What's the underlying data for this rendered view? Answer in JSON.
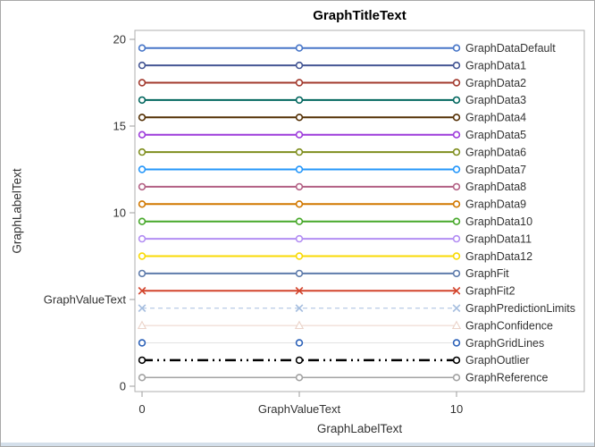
{
  "title": "GraphTitleText",
  "palette": {
    "wall_border": "#AFAFAF",
    "tick": "#9D9D9D",
    "axis_text": "#333333",
    "label_text": "#333333",
    "marker_fill": "#FFFFFF",
    "window_edge": "#D4DFEA"
  },
  "chart_data": {
    "type": "line",
    "title": "GraphTitleText",
    "xlabel": "GraphLabelText",
    "ylabel": "GraphLabelText",
    "xlim": [
      0,
      10
    ],
    "ylim": [
      0,
      20
    ],
    "grid": false,
    "legend_position": "right-inline-labels",
    "x_points": [
      0,
      5,
      10
    ],
    "x_ticks": [
      {
        "value": 0,
        "label": "0"
      },
      {
        "value": 5,
        "label": "GraphValueText"
      },
      {
        "value": 10,
        "label": "10"
      }
    ],
    "y_ticks": [
      {
        "value": 20,
        "label": "20"
      },
      {
        "value": 15,
        "label": "15"
      },
      {
        "value": 10,
        "label": "10"
      },
      {
        "value": 5,
        "label": "GraphValueText"
      },
      {
        "value": 0,
        "label": "0"
      }
    ],
    "series": [
      {
        "name": "GraphDataDefault",
        "y": 19.5,
        "color": "#4876C8",
        "line_style": "solid",
        "line_width": 2,
        "marker": "circle"
      },
      {
        "name": "GraphData1",
        "y": 18.5,
        "color": "#445694",
        "line_style": "solid",
        "line_width": 2,
        "marker": "circle"
      },
      {
        "name": "GraphData2",
        "y": 17.5,
        "color": "#A23A2E",
        "line_style": "solid",
        "line_width": 2,
        "marker": "circle"
      },
      {
        "name": "GraphData3",
        "y": 16.5,
        "color": "#01665E",
        "line_style": "solid",
        "line_width": 2,
        "marker": "circle"
      },
      {
        "name": "GraphData4",
        "y": 15.5,
        "color": "#543005",
        "line_style": "solid",
        "line_width": 2,
        "marker": "circle"
      },
      {
        "name": "GraphData5",
        "y": 14.5,
        "color": "#9D3CDB",
        "line_style": "solid",
        "line_width": 2,
        "marker": "circle"
      },
      {
        "name": "GraphData6",
        "y": 13.5,
        "color": "#7F8E1F",
        "line_style": "solid",
        "line_width": 2,
        "marker": "circle"
      },
      {
        "name": "GraphData7",
        "y": 12.5,
        "color": "#2597FA",
        "line_style": "solid",
        "line_width": 2,
        "marker": "circle"
      },
      {
        "name": "GraphData8",
        "y": 11.5,
        "color": "#B26084",
        "line_style": "solid",
        "line_width": 2,
        "marker": "circle"
      },
      {
        "name": "GraphData9",
        "y": 10.5,
        "color": "#D17800",
        "line_style": "solid",
        "line_width": 2,
        "marker": "circle"
      },
      {
        "name": "GraphData10",
        "y": 9.5,
        "color": "#47A82A",
        "line_style": "solid",
        "line_width": 2,
        "marker": "circle"
      },
      {
        "name": "GraphData11",
        "y": 8.5,
        "color": "#B38EF3",
        "line_style": "solid",
        "line_width": 2,
        "marker": "circle"
      },
      {
        "name": "GraphData12",
        "y": 7.5,
        "color": "#F9DA04",
        "line_style": "solid",
        "line_width": 2,
        "marker": "circle"
      },
      {
        "name": "GraphFit",
        "y": 6.5,
        "color": "#5E7BAB",
        "line_style": "solid",
        "line_width": 2,
        "marker": "circle"
      },
      {
        "name": "GraphFit2",
        "y": 5.5,
        "color": "#D2442C",
        "line_style": "solid",
        "line_width": 2,
        "marker": "x"
      },
      {
        "name": "GraphPredictionLimits",
        "y": 4.5,
        "color": "#A5BDDF",
        "line_style": "dash",
        "line_width": 1,
        "marker": "x"
      },
      {
        "name": "GraphConfidence",
        "y": 3.5,
        "color": "#EBD3C9",
        "line_style": "solid",
        "line_width": 1,
        "marker": "triangle"
      },
      {
        "name": "GraphGridLines",
        "y": 2.5,
        "color": "#2D62B8",
        "line_color": "#E2E2E2",
        "line_style": "solid",
        "line_width": 1,
        "marker": "circle"
      },
      {
        "name": "GraphOutlier",
        "y": 1.5,
        "color": "#000000",
        "line_style": "dashdotdot",
        "line_width": 2.5,
        "marker": "circle"
      },
      {
        "name": "GraphReference",
        "y": 0.5,
        "color": "#A3A3A3",
        "line_style": "solid",
        "line_width": 1.5,
        "marker": "circle"
      }
    ]
  }
}
